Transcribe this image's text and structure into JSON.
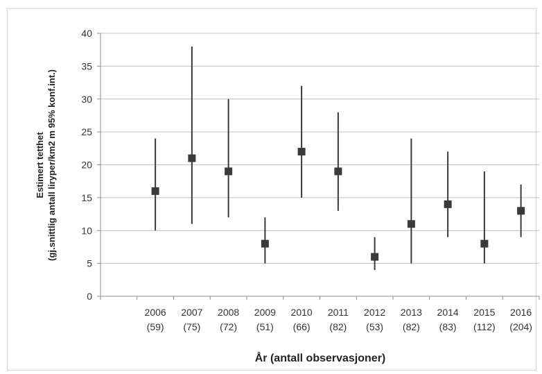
{
  "chart_data": {
    "type": "scatter",
    "title": "",
    "xlabel": "År (antall observasjoner)",
    "ylabel_lines": [
      "Estimert tetthet",
      "(gj.snittlig antall liryper/km2 m 95%  konf.int.)"
    ],
    "ylim": [
      0,
      40
    ],
    "yticks": [
      0,
      5,
      10,
      15,
      20,
      25,
      30,
      35,
      40
    ],
    "grid": true,
    "categories": [
      {
        "year": "2006",
        "n": "(59)"
      },
      {
        "year": "2007",
        "n": "(75)"
      },
      {
        "year": "2008",
        "n": "(72)"
      },
      {
        "year": "2009",
        "n": "(51)"
      },
      {
        "year": "2010",
        "n": "(66)"
      },
      {
        "year": "2011",
        "n": "(82)"
      },
      {
        "year": "2012",
        "n": "(53)"
      },
      {
        "year": "2013",
        "n": "(82)"
      },
      {
        "year": "2014",
        "n": "(83)"
      },
      {
        "year": "2015",
        "n": "(112)"
      },
      {
        "year": "2016",
        "n": "(204)"
      }
    ],
    "series": [
      {
        "values": [
          16,
          21,
          19,
          8,
          22,
          19,
          6,
          11,
          14,
          8,
          13
        ],
        "ci_low": [
          10,
          11,
          12,
          5,
          15,
          13,
          4,
          5,
          9,
          5,
          9
        ],
        "ci_high": [
          24,
          38,
          30,
          12,
          32,
          28,
          9,
          24,
          22,
          19,
          17
        ]
      }
    ],
    "colors": {
      "marker": "#3a3a3a",
      "errorbar": "#3a3a3a",
      "grid": "#bfbfbf",
      "axis": "#8c8c8c"
    }
  }
}
